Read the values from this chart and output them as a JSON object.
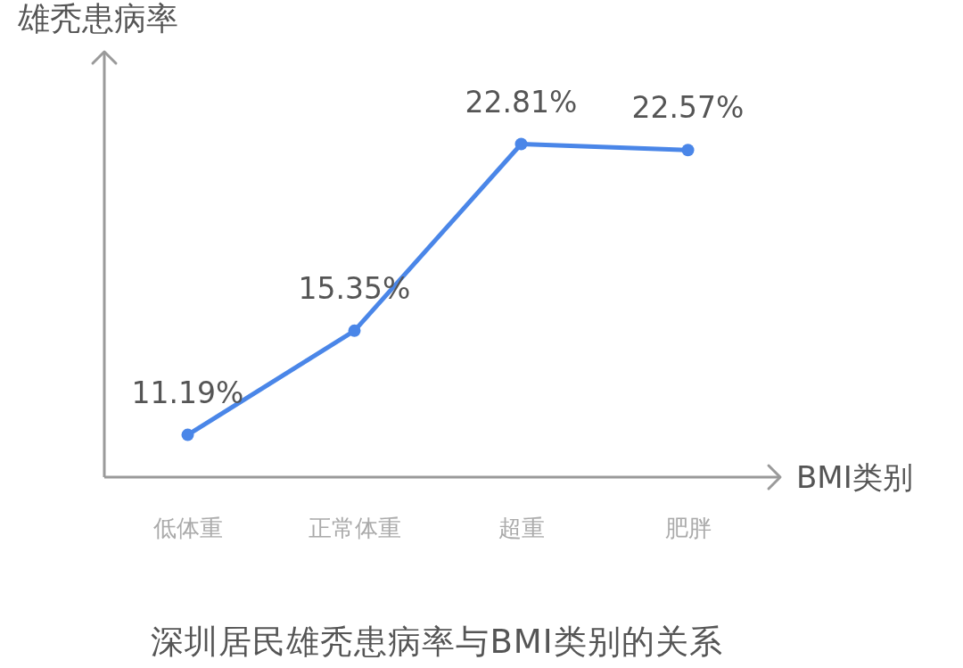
{
  "chart_data": {
    "type": "line",
    "title": "深圳居民雄秃患病率与BMI类别的关系",
    "xlabel": "BMI类别",
    "ylabel": "雄秃患病率",
    "categories": [
      "低体重",
      "正常体重",
      "超重",
      "肥胖"
    ],
    "series": [
      {
        "color": "#4a86e8",
        "values": [
          11.19,
          15.35,
          22.81,
          22.57
        ],
        "value_labels": [
          "11.19%",
          "15.35%",
          "22.81%",
          "22.57%"
        ]
      }
    ],
    "ylim": [
      9.5,
      26.5
    ],
    "tick_labels": "x",
    "marker": "circle",
    "line_style": "solid"
  }
}
